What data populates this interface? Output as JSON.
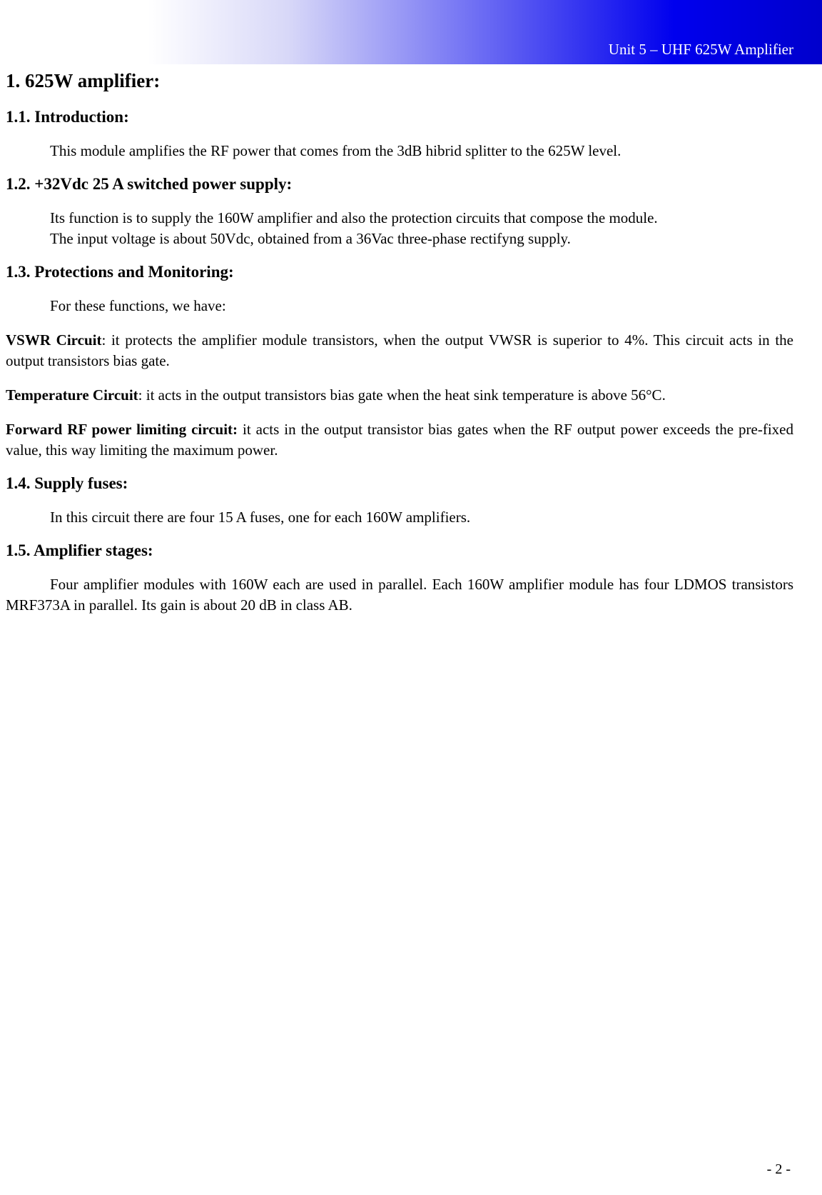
{
  "header": {
    "unit_label": "Unit 5 – UHF 625W Amplifier",
    "gradient_start": "#ffffff",
    "gradient_mid": "#d8d8f8",
    "gradient_end": "#0000cc",
    "text_color": "#ffffff"
  },
  "sections": {
    "main_title": "1. 625W amplifier:",
    "s1_1": {
      "title": "1.1. Introduction:",
      "text": "This module amplifies the RF power that comes from the 3dB hibrid splitter to the 625W level."
    },
    "s1_2": {
      "title": "1.2. +32Vdc 25 A switched power supply:",
      "text1": "Its function is to supply the 160W amplifier and also the protection circuits that compose the module.",
      "text2": "The input voltage is about 50Vdc, obtained from a 36Vac three-phase rectifyng supply."
    },
    "s1_3": {
      "title": "1.3. Protections and Monitoring:",
      "intro": "For these functions, we have:",
      "vswr_label": "VSWR Circuit",
      "vswr_text": ": it protects the amplifier module transistors, when the output VWSR is superior to 4%. This circuit acts in the output transistors bias gate.",
      "temp_label": "Temperature Circuit",
      "temp_text": ": it acts in the output transistors bias gate when the heat sink temperature is above 56°C.",
      "fwd_label": "Forward RF power limiting circuit:",
      "fwd_text": " it acts in the output transistor bias gates when the RF output power exceeds the pre-fixed value, this way limiting the maximum power."
    },
    "s1_4": {
      "title": "1.4. Supply fuses:",
      "text": "In this circuit there are four 15 A fuses, one for each 160W amplifiers."
    },
    "s1_5": {
      "title": "1.5. Amplifier stages:",
      "text": "Four amplifier modules with 160W each are used in parallel. Each 160W amplifier module has four LDMOS transistors MRF373A in parallel. Its gain is about 20 dB in class AB."
    }
  },
  "footer": {
    "page_number": "- 2 -"
  },
  "typography": {
    "h1_fontsize": 27,
    "h2_fontsize": 23,
    "body_fontsize": 21,
    "text_indent": 62
  }
}
